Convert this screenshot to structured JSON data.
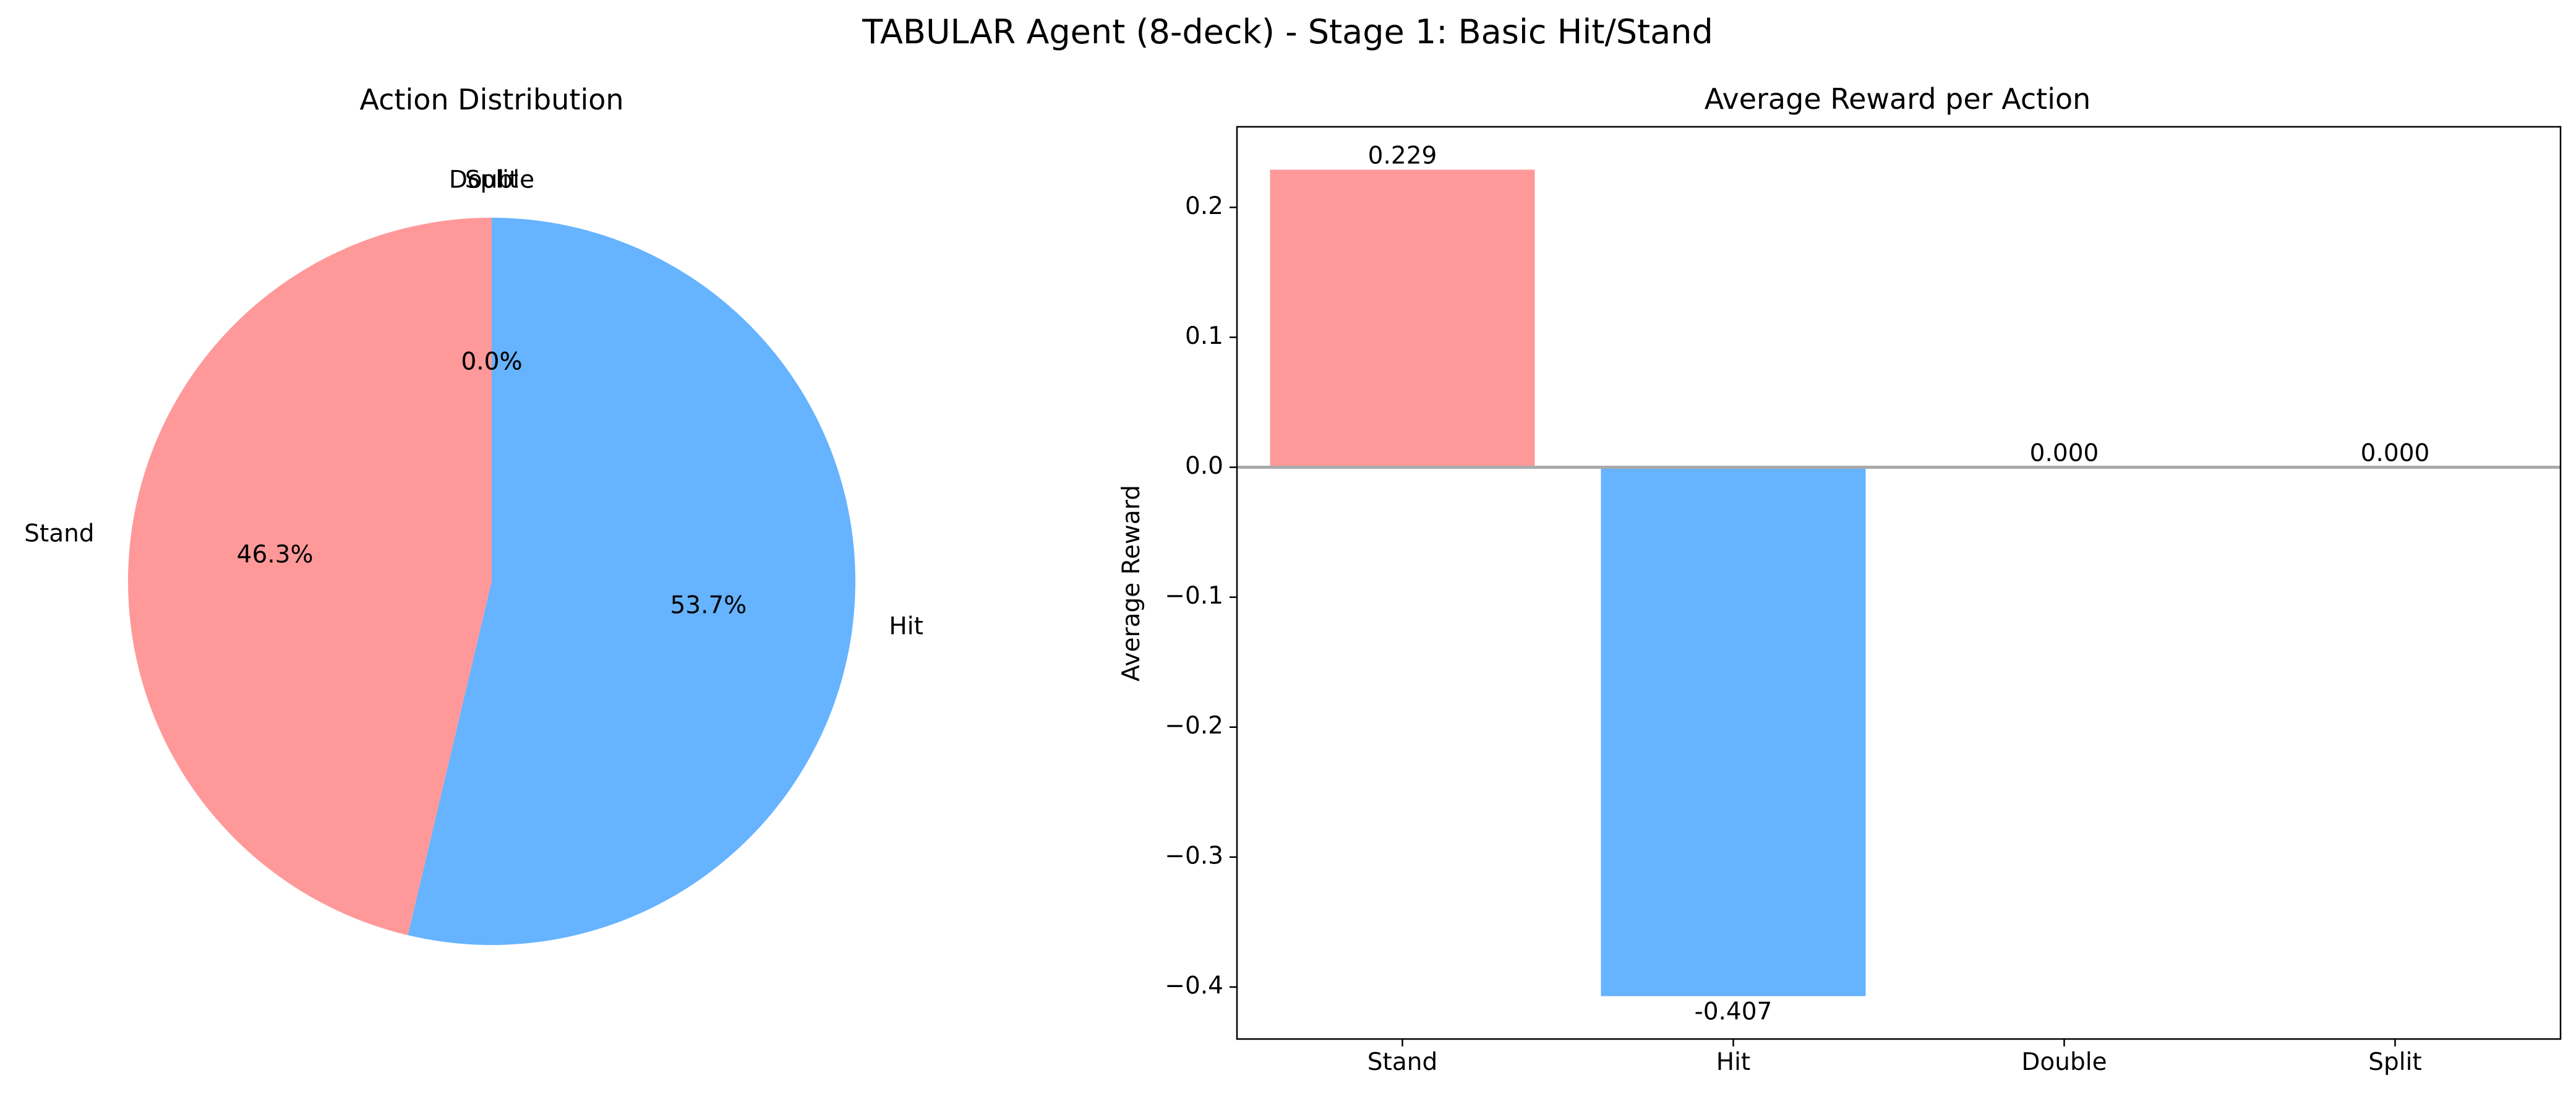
{
  "figure_title": "TABULAR Agent (8-deck) - Stage 1: Basic Hit/Stand",
  "chart_data": [
    {
      "type": "pie",
      "title": "Action Distribution",
      "labels": [
        "Stand",
        "Hit",
        "Double",
        "Split"
      ],
      "values": [
        46.3,
        53.7,
        0.0,
        0.0
      ],
      "value_labels": [
        "46.3%",
        "53.7%",
        "0.0%",
        "0.0%"
      ],
      "colors": [
        "#ff9999",
        "#66b3ff",
        "#99ff99",
        "#ffcc99"
      ],
      "start_angle_deg": 90,
      "direction": "counterclockwise"
    },
    {
      "type": "bar",
      "title": "Average Reward per Action",
      "xlabel": "",
      "ylabel": "Average Reward",
      "categories": [
        "Stand",
        "Hit",
        "Double",
        "Split"
      ],
      "values": [
        0.229,
        -0.407,
        0.0,
        0.0
      ],
      "value_labels": [
        "0.229",
        "-0.407",
        "0.000",
        "0.000"
      ],
      "colors": [
        "#ff9999",
        "#66b3ff",
        "#99ff99",
        "#ffcc99"
      ],
      "ylim": [
        -0.44,
        0.262
      ],
      "yticks": [
        -0.4,
        -0.3,
        -0.2,
        -0.1,
        0.0,
        0.1,
        0.2
      ],
      "ytick_labels": [
        "−0.4",
        "−0.3",
        "−0.2",
        "−0.1",
        "0.0",
        "0.1",
        "0.2"
      ],
      "zero_line": true,
      "zero_line_color": "#aaaaaa",
      "grid": false
    }
  ]
}
